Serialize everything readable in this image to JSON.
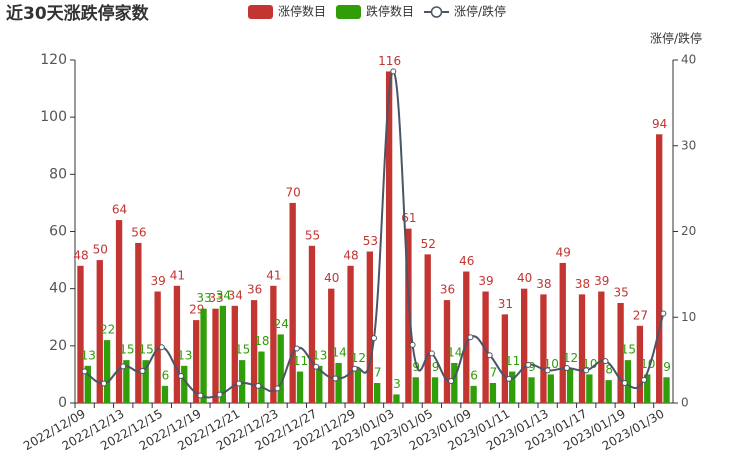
{
  "chart_data": {
    "type": "bar_line",
    "title": "近30天涨跌停家数",
    "y2_label": "涨停/跌停",
    "categories": [
      "2022/12/09",
      null,
      "2022/12/13",
      null,
      "2022/12/15",
      null,
      "2022/12/19",
      null,
      "2022/12/21",
      null,
      "2022/12/23",
      null,
      "2022/12/27",
      null,
      "2022/12/29",
      null,
      "2023/01/03",
      null,
      "2023/01/05",
      null,
      "2023/01/09",
      null,
      "2023/01/11",
      null,
      "2023/01/13",
      null,
      "2023/01/17",
      null,
      "2023/01/19",
      null,
      "2023/01/30"
    ],
    "series": [
      {
        "name": "涨停数目",
        "color": "#c23531",
        "type": "bar",
        "values": [
          48,
          50,
          64,
          56,
          39,
          41,
          29,
          33,
          34,
          36,
          41,
          70,
          55,
          40,
          48,
          53,
          116,
          61,
          52,
          36,
          46,
          39,
          31,
          40,
          38,
          49,
          38,
          39,
          35,
          27,
          94
        ]
      },
      {
        "name": "跌停数目",
        "color": "#2f9e08",
        "type": "bar",
        "values": [
          13,
          22,
          15,
          15,
          6,
          13,
          33,
          34,
          15,
          18,
          24,
          11,
          13,
          14,
          12,
          7,
          3,
          9,
          9,
          14,
          6,
          7,
          11,
          9,
          10,
          12,
          10,
          8,
          15,
          10,
          9
        ]
      },
      {
        "name": "涨停/跌停",
        "color": "#4b5566",
        "type": "line",
        "axis": "y2",
        "values": [
          3.69,
          2.27,
          4.27,
          3.73,
          6.5,
          3.15,
          0.88,
          0.97,
          2.27,
          2,
          1.71,
          6.36,
          4.23,
          2.86,
          4,
          7.57,
          38.67,
          6.78,
          5.78,
          2.57,
          7.67,
          5.57,
          2.82,
          4.44,
          3.8,
          4.08,
          3.8,
          4.88,
          2.33,
          2.7,
          10.44
        ]
      }
    ],
    "ylim": [
      0,
      120
    ],
    "yticks": [
      0,
      20,
      40,
      60,
      80,
      100,
      120
    ],
    "y2lim": [
      0,
      40
    ],
    "y2ticks": [
      0,
      10,
      20,
      30,
      40
    ]
  }
}
